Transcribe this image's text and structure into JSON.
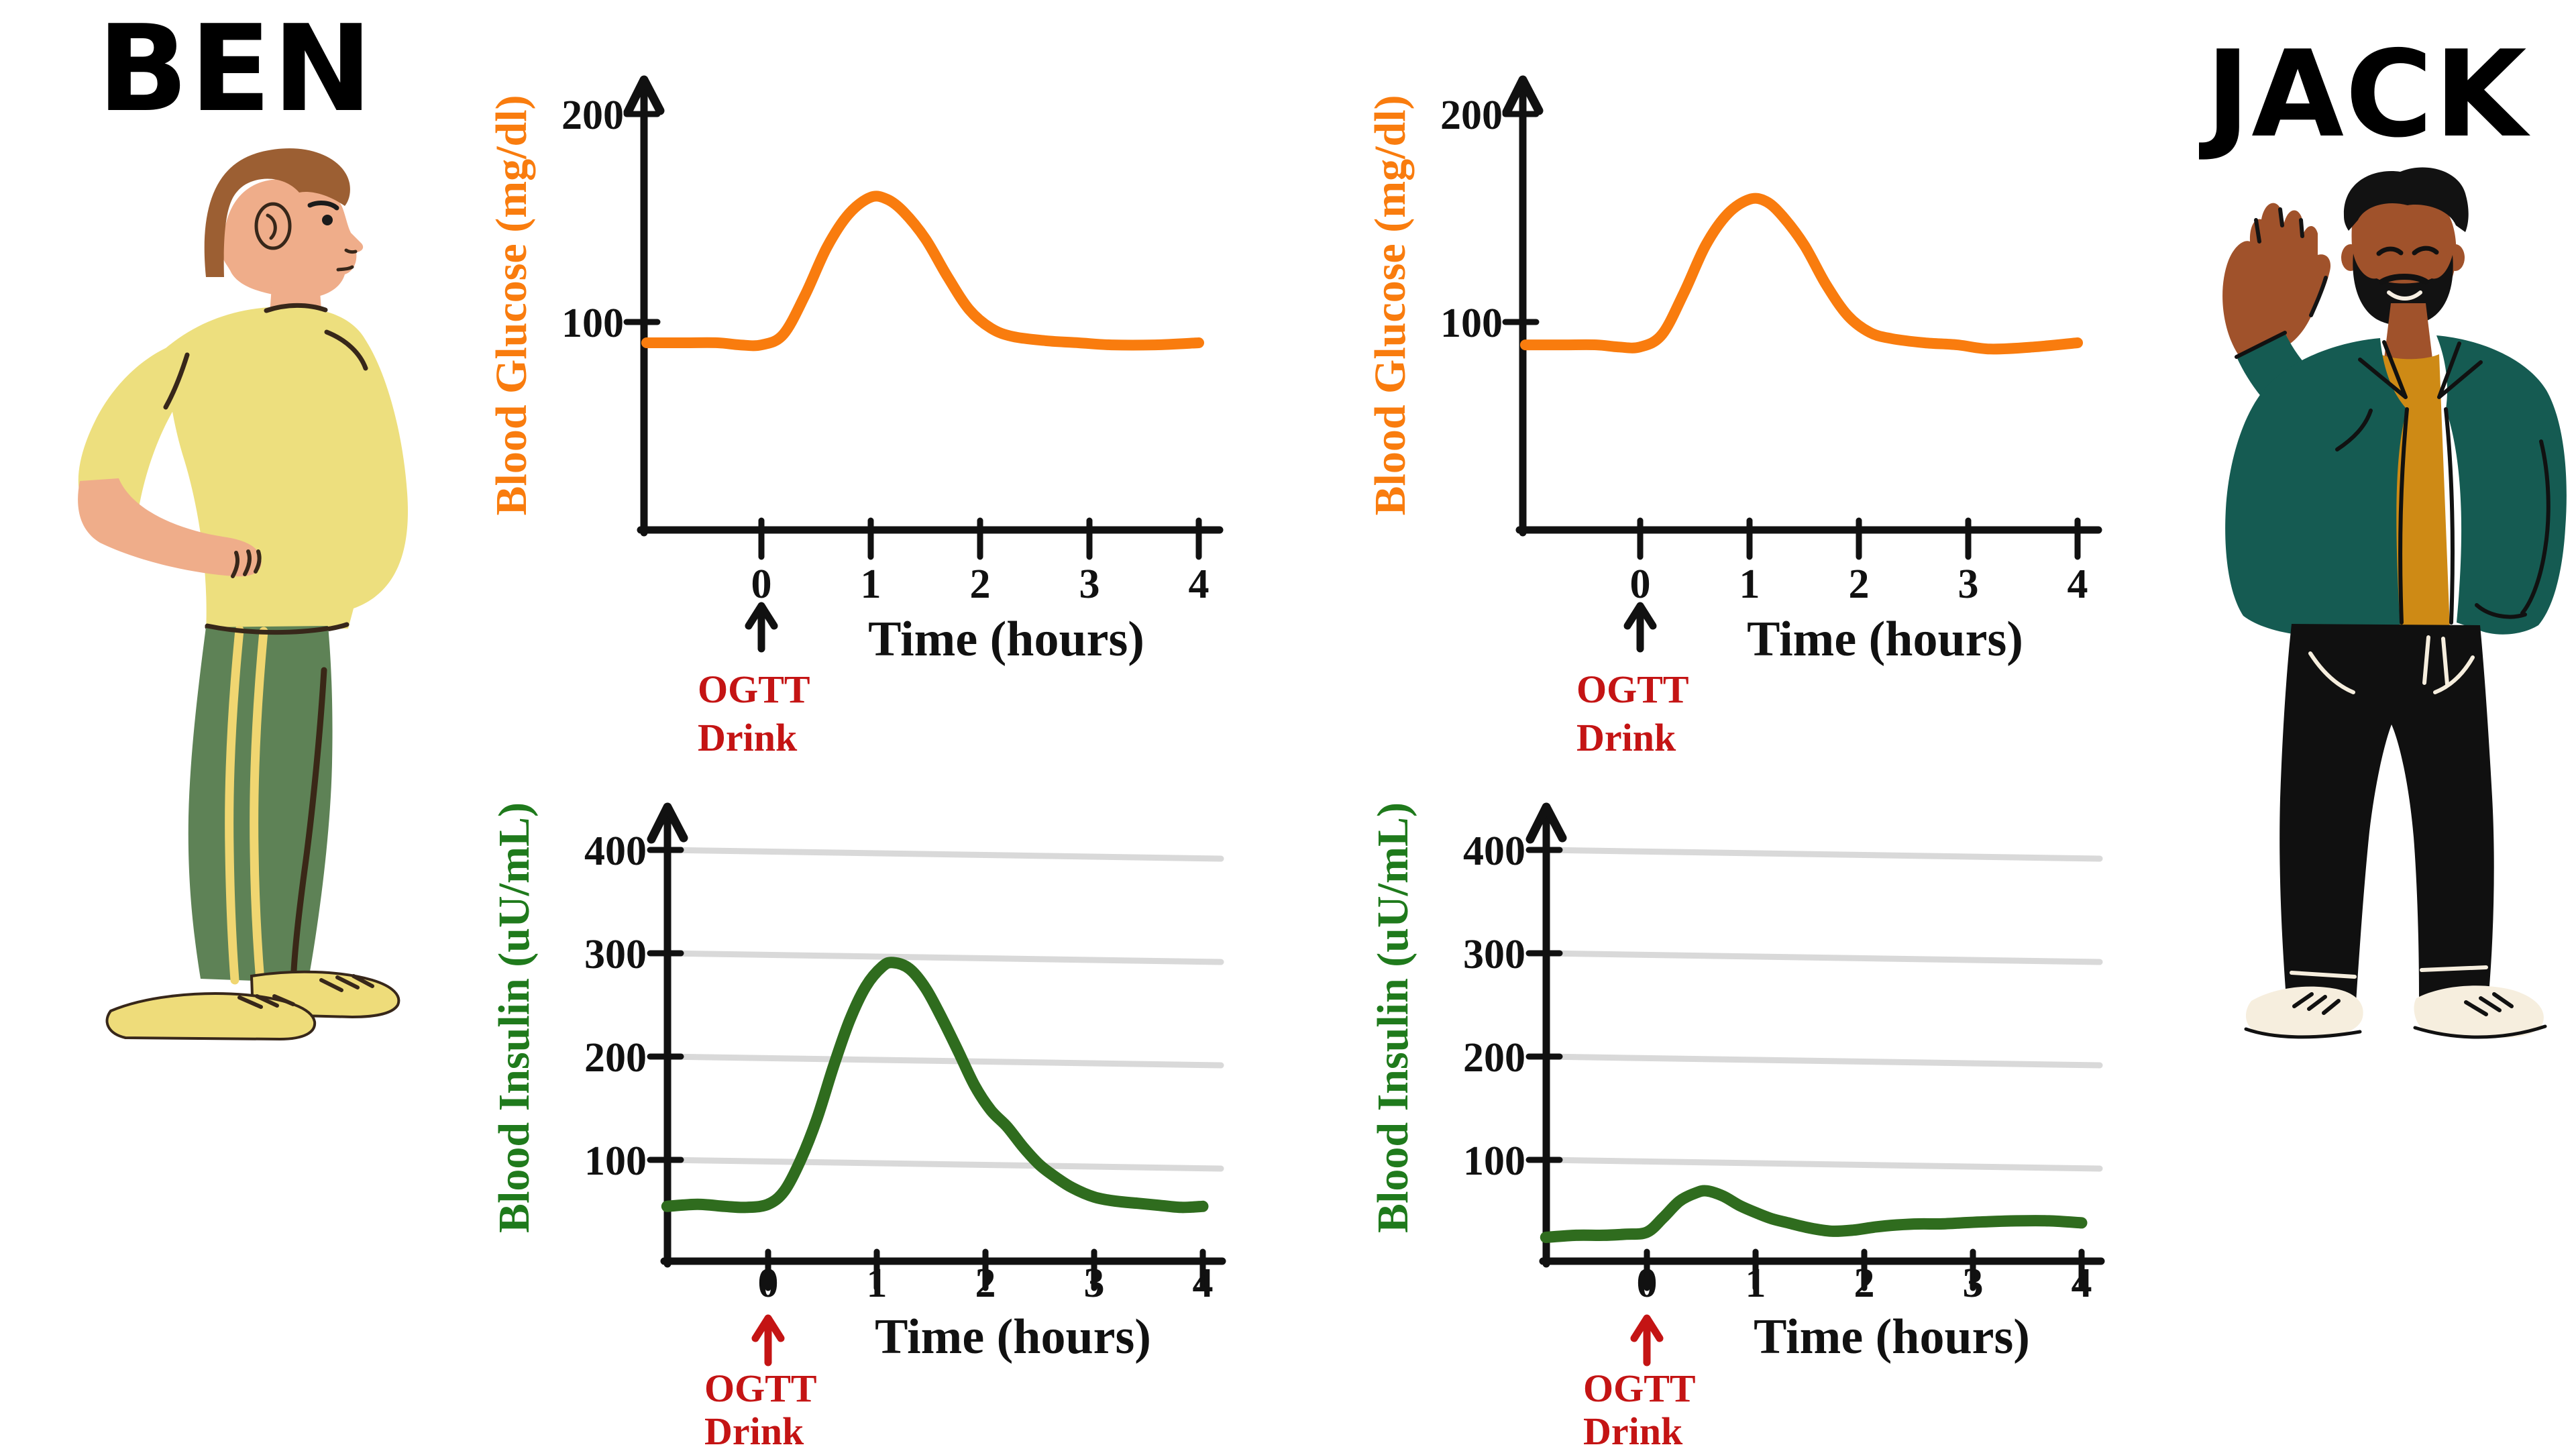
{
  "page": {
    "background": "#ffffff"
  },
  "titles": {
    "left": "BEN",
    "right": "JACK"
  },
  "colors": {
    "glucose": "#f97c0e",
    "insulin_curve": "#2f6c1e",
    "insulin_label": "#1f7a1c",
    "annotation_red": "#c41414",
    "axis": "#111111",
    "gridline": "#d9d9d9"
  },
  "illustrations": {
    "ben": {
      "skin": "#efad8a",
      "hair": "#9c5f33",
      "shirt": "#eddf7e",
      "pants": "#5e8256",
      "stripe": "#f0d671",
      "shoes": "#eedc7a",
      "outline": "#37271a"
    },
    "jack": {
      "skin": "#a0522b",
      "hair": "#121212",
      "jacket": "#155b52",
      "shirt": "#ce8a15",
      "pants": "#101010",
      "shoes": "#f6eede",
      "detail": "#f6eede",
      "outline": "#121212"
    }
  },
  "chart_data": [
    {
      "id": "ben-glucose",
      "person": "BEN",
      "type": "line",
      "ylabel": "Blood Glucose (mg/dl)",
      "xlabel": "Time (hours)",
      "x_tick_labels": [
        "0",
        "1",
        "2",
        "3",
        "4"
      ],
      "y_tick_labels": [
        "100",
        "200"
      ],
      "xlim": [
        -1.05,
        4.35
      ],
      "ylim": [
        0,
        225
      ],
      "grid": false,
      "annotation": [
        "OGTT",
        "Drink"
      ],
      "annotation_color": "#c41414",
      "arrow_color": "#111111",
      "line_color": "#f97c0e",
      "series": [
        {
          "name": "Ben blood glucose (mg/dl)",
          "points": [
            [
              -1.05,
              90
            ],
            [
              -0.7,
              90
            ],
            [
              -0.4,
              90
            ],
            [
              -0.2,
              89
            ],
            [
              0,
              89
            ],
            [
              0.2,
              94
            ],
            [
              0.4,
              113
            ],
            [
              0.6,
              136
            ],
            [
              0.8,
              152
            ],
            [
              1,
              160
            ],
            [
              1.15,
              159
            ],
            [
              1.3,
              153
            ],
            [
              1.5,
              140
            ],
            [
              1.7,
              122
            ],
            [
              1.9,
              106
            ],
            [
              2.1,
              97
            ],
            [
              2.3,
              93
            ],
            [
              2.6,
              91
            ],
            [
              2.9,
              90
            ],
            [
              3.2,
              89
            ],
            [
              3.6,
              89
            ],
            [
              4,
              90
            ]
          ]
        }
      ]
    },
    {
      "id": "jack-glucose",
      "person": "JACK",
      "type": "line",
      "ylabel": "Blood Glucose (mg/dl)",
      "xlabel": "Time (hours)",
      "x_tick_labels": [
        "0",
        "1",
        "2",
        "3",
        "4"
      ],
      "y_tick_labels": [
        "100",
        "200"
      ],
      "xlim": [
        -1.05,
        4.35
      ],
      "ylim": [
        0,
        225
      ],
      "grid": false,
      "annotation": [
        "OGTT",
        "Drink"
      ],
      "annotation_color": "#c41414",
      "arrow_color": "#111111",
      "line_color": "#f97c0e",
      "series": [
        {
          "name": "Jack blood glucose (mg/dl)",
          "points": [
            [
              -1.05,
              89
            ],
            [
              -0.7,
              89
            ],
            [
              -0.4,
              89
            ],
            [
              -0.2,
              88
            ],
            [
              0,
              88
            ],
            [
              0.2,
              94
            ],
            [
              0.4,
              114
            ],
            [
              0.6,
              137
            ],
            [
              0.8,
              152
            ],
            [
              1,
              159
            ],
            [
              1.15,
              158
            ],
            [
              1.3,
              151
            ],
            [
              1.5,
              137
            ],
            [
              1.7,
              118
            ],
            [
              1.9,
              103
            ],
            [
              2.1,
              95
            ],
            [
              2.3,
              92
            ],
            [
              2.6,
              90
            ],
            [
              2.9,
              89
            ],
            [
              3.2,
              87
            ],
            [
              3.6,
              88
            ],
            [
              4,
              90
            ]
          ]
        }
      ]
    },
    {
      "id": "ben-insulin",
      "person": "BEN",
      "type": "line",
      "ylabel": "Blood Insulin (uU/mL)",
      "xlabel": "Time (hours)",
      "x_tick_labels": [
        "0",
        "1",
        "2",
        "3",
        "4"
      ],
      "y_tick_labels": [
        "100",
        "200",
        "300",
        "400"
      ],
      "xlim": [
        -0.93,
        4.35
      ],
      "ylim": [
        0,
        440
      ],
      "grid": true,
      "gridline_values": [
        100,
        200,
        300,
        400
      ],
      "annotation": [
        "OGTT",
        "Drink"
      ],
      "annotation_color": "#c41414",
      "arrow_color": "#c41414",
      "line_color": "#2f6c1e",
      "series": [
        {
          "name": "Ben blood insulin (uU/mL)",
          "points": [
            [
              -0.93,
              55
            ],
            [
              -0.65,
              57
            ],
            [
              -0.4,
              55
            ],
            [
              -0.2,
              54
            ],
            [
              0,
              57
            ],
            [
              0.15,
              70
            ],
            [
              0.3,
              100
            ],
            [
              0.45,
              140
            ],
            [
              0.6,
              190
            ],
            [
              0.75,
              235
            ],
            [
              0.9,
              268
            ],
            [
              1.05,
              287
            ],
            [
              1.15,
              291
            ],
            [
              1.3,
              285
            ],
            [
              1.45,
              266
            ],
            [
              1.6,
              237
            ],
            [
              1.75,
              205
            ],
            [
              1.9,
              172
            ],
            [
              2.05,
              148
            ],
            [
              2.2,
              132
            ],
            [
              2.35,
              112
            ],
            [
              2.5,
              95
            ],
            [
              2.65,
              83
            ],
            [
              2.8,
              73
            ],
            [
              3,
              64
            ],
            [
              3.2,
              60
            ],
            [
              3.4,
              58
            ],
            [
              3.6,
              56
            ],
            [
              3.8,
              54
            ],
            [
              4,
              55
            ]
          ]
        }
      ]
    },
    {
      "id": "jack-insulin",
      "person": "JACK",
      "type": "line",
      "ylabel": "Blood Insulin (uU/mL)",
      "xlabel": "Time (hours)",
      "x_tick_labels": [
        "0",
        "1",
        "2",
        "3",
        "4"
      ],
      "y_tick_labels": [
        "100",
        "200",
        "300",
        "400"
      ],
      "xlim": [
        -0.93,
        4.35
      ],
      "ylim": [
        0,
        440
      ],
      "grid": true,
      "gridline_values": [
        100,
        200,
        300,
        400
      ],
      "annotation": [
        "OGTT",
        "Drink"
      ],
      "annotation_color": "#c41414",
      "arrow_color": "#c41414",
      "line_color": "#2f6c1e",
      "series": [
        {
          "name": "Jack blood insulin (uU/mL)",
          "points": [
            [
              -0.93,
              25
            ],
            [
              -0.65,
              27
            ],
            [
              -0.4,
              27
            ],
            [
              -0.2,
              28
            ],
            [
              0,
              30
            ],
            [
              0.15,
              44
            ],
            [
              0.3,
              60
            ],
            [
              0.45,
              68
            ],
            [
              0.55,
              70
            ],
            [
              0.7,
              65
            ],
            [
              0.85,
              56
            ],
            [
              1,
              49
            ],
            [
              1.15,
              43
            ],
            [
              1.3,
              39
            ],
            [
              1.5,
              34
            ],
            [
              1.7,
              31
            ],
            [
              1.9,
              32
            ],
            [
              2.1,
              35
            ],
            [
              2.3,
              37
            ],
            [
              2.5,
              38
            ],
            [
              2.7,
              38
            ],
            [
              2.9,
              39
            ],
            [
              3.1,
              40
            ],
            [
              3.4,
              41
            ],
            [
              3.7,
              41
            ],
            [
              4,
              39
            ]
          ]
        }
      ]
    }
  ]
}
